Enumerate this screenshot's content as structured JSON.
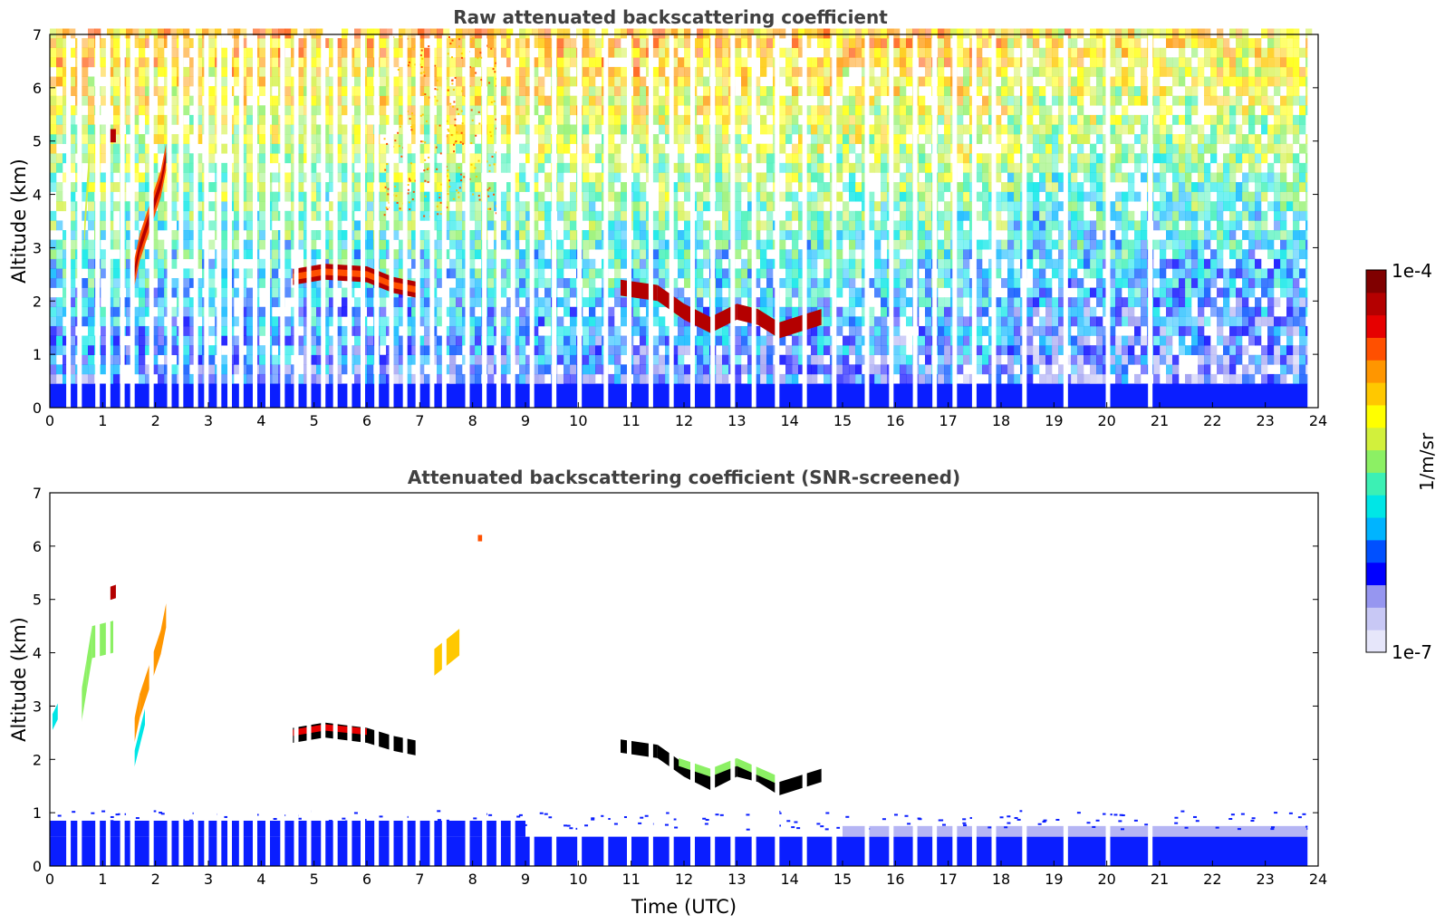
{
  "chart_data": [
    {
      "type": "heatmap",
      "title": "Raw attenuated backscattering coefficient",
      "xlabel": "",
      "ylabel": "Altitude (km)",
      "xlim": [
        0,
        24
      ],
      "ylim": [
        0,
        7
      ],
      "xticks": [
        "0",
        "1",
        "2",
        "3",
        "4",
        "5",
        "6",
        "7",
        "8",
        "9",
        "10",
        "11",
        "12",
        "13",
        "14",
        "15",
        "16",
        "17",
        "18",
        "19",
        "20",
        "21",
        "22",
        "23",
        "24"
      ],
      "yticks": [
        "0",
        "1",
        "2",
        "3",
        "4",
        "5",
        "6",
        "7"
      ],
      "grid": false,
      "data_gaps_hours": [
        0.31,
        0.52,
        0.86,
        1.06,
        1.33,
        1.52,
        1.88,
        2.22,
        2.44,
        2.72,
        2.92,
        3.16,
        3.36,
        3.58,
        3.84,
        4.08,
        4.36,
        4.62,
        4.86,
        5.13,
        5.36,
        5.63,
        5.88,
        6.14,
        6.42,
        6.68,
        6.92,
        7.19,
        7.42,
        7.86,
        8.18,
        8.45,
        8.72,
        9.08,
        9.5,
        9.98,
        10.48,
        10.92,
        11.33,
        11.72,
        12.12,
        12.5,
        12.88,
        13.28,
        13.72,
        14.24,
        14.8,
        15.42,
        15.88,
        16.33,
        16.7,
        17.08,
        17.45,
        17.82,
        18.4,
        19.18,
        19.98,
        20.78
      ],
      "features": [
        {
          "name": "cloud-layer",
          "x_range": [
            4.6,
            7.0
          ],
          "altitude_km": [
            2.1,
            2.7
          ]
        },
        {
          "name": "cloud-layer",
          "x_range": [
            10.8,
            14.6
          ],
          "altitude_km": [
            1.4,
            2.4
          ]
        },
        {
          "name": "cloud-column",
          "x_range": [
            1.5,
            2.2
          ],
          "altitude_km": [
            2.0,
            4.8
          ]
        },
        {
          "name": "cloud-column",
          "x_range": [
            0.6,
            1.2
          ],
          "altitude_km": [
            3.0,
            5.2
          ]
        },
        {
          "name": "cloud-column",
          "x_range": [
            7.2,
            8.2
          ],
          "altitude_km": [
            3.5,
            7.0
          ]
        },
        {
          "name": "boundary-layer",
          "x_range": [
            0.0,
            23.8
          ],
          "altitude_km": [
            0.0,
            0.5
          ]
        }
      ]
    },
    {
      "type": "heatmap",
      "title": "Attenuated backscattering coefficient (SNR-screened)",
      "xlabel": "Time (UTC)",
      "ylabel": "Altitude (km)",
      "xlim": [
        0,
        24
      ],
      "ylim": [
        0,
        7
      ],
      "xticks": [
        "0",
        "1",
        "2",
        "3",
        "4",
        "5",
        "6",
        "7",
        "8",
        "9",
        "10",
        "11",
        "12",
        "13",
        "14",
        "15",
        "16",
        "17",
        "18",
        "19",
        "20",
        "21",
        "22",
        "23",
        "24"
      ],
      "yticks": [
        "0",
        "1",
        "2",
        "3",
        "4",
        "5",
        "6",
        "7"
      ],
      "grid": false
    }
  ],
  "colorbar": {
    "label": "1/m/sr",
    "min_label": "1e-7",
    "max_label": "1e-4",
    "scale": "log",
    "colors": [
      "#e6e6fa",
      "#c8c8f5",
      "#9696f0",
      "#0000ff",
      "#0050ff",
      "#00b4ff",
      "#00e6e6",
      "#3cf0b4",
      "#8cf064",
      "#d2f03c",
      "#ffff00",
      "#ffc800",
      "#ff9600",
      "#ff5000",
      "#e60000",
      "#b40000",
      "#800000"
    ]
  }
}
